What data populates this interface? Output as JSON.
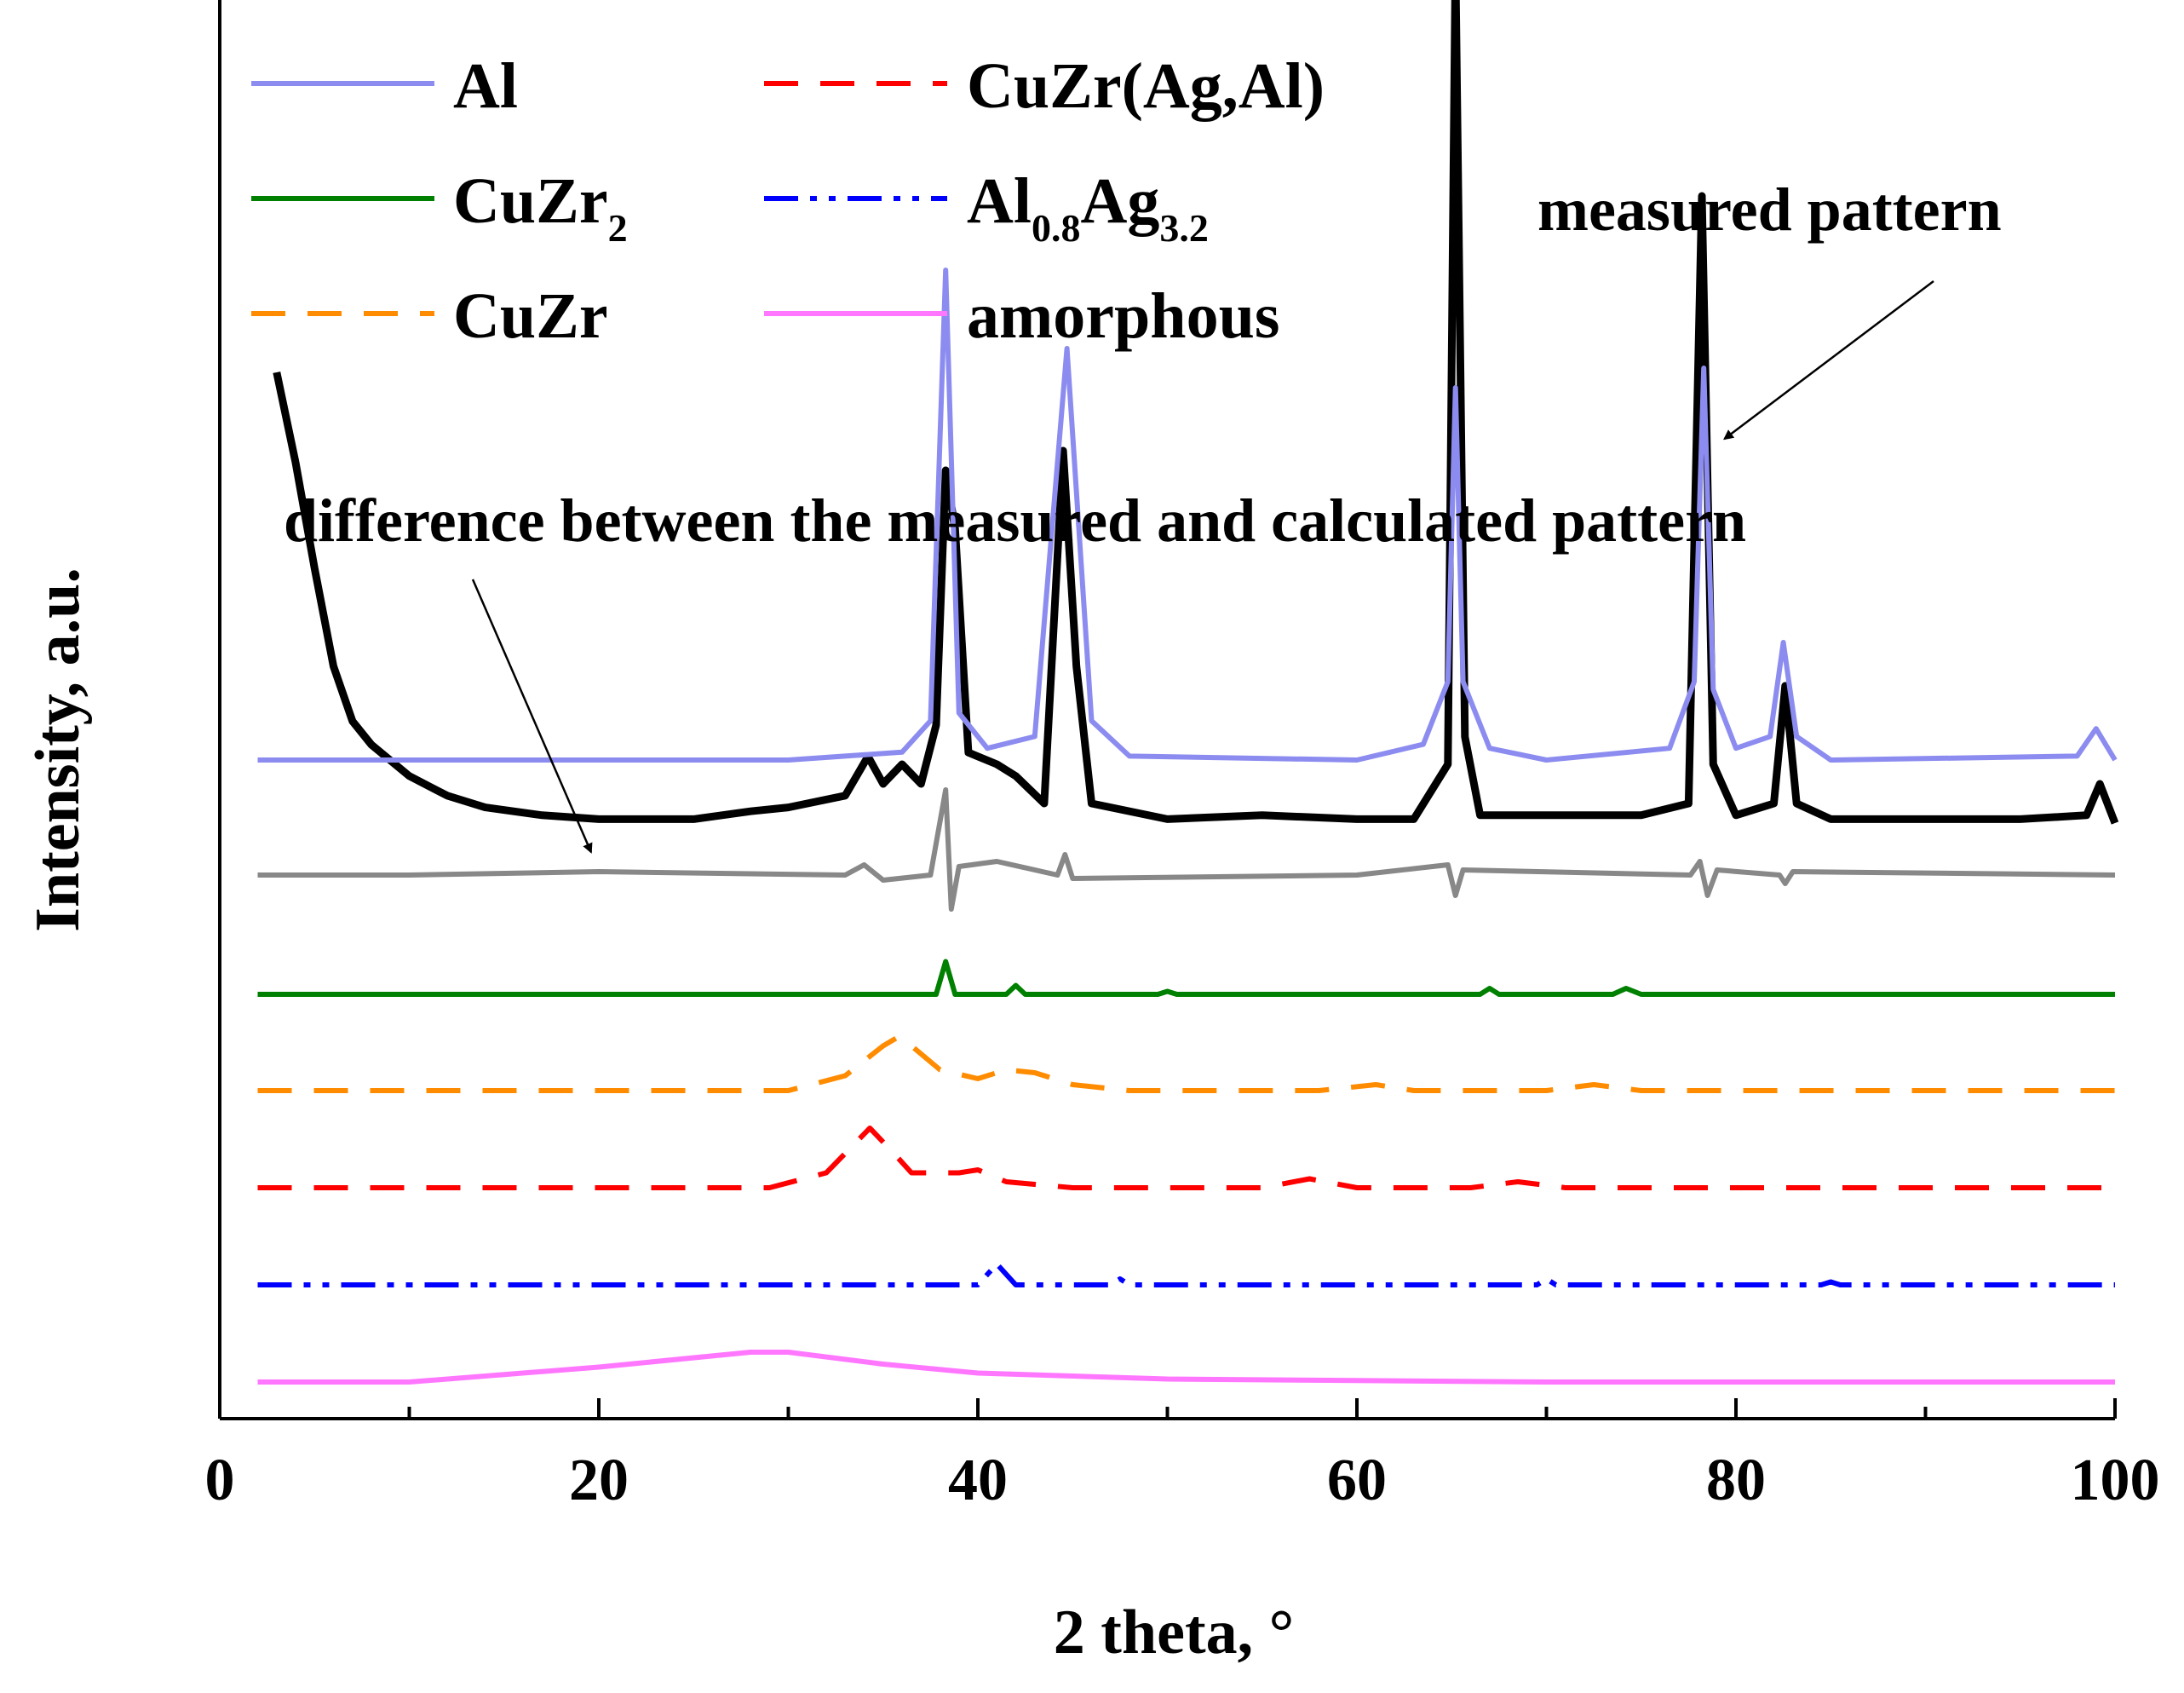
{
  "chart_data": {
    "type": "line",
    "title": "",
    "xlabel": "2 theta, °",
    "ylabel": "Intensity, a.u.",
    "xlim": [
      0,
      100
    ],
    "x_ticks": [
      0,
      20,
      40,
      60,
      80,
      100
    ],
    "x_tick_labels": [
      "0",
      "20",
      "40",
      "60",
      "80",
      "100"
    ],
    "y_ticks": [],
    "grid": false,
    "legend_position": "top-left",
    "legend": [
      {
        "key": "al",
        "parts": [
          {
            "text": "Al"
          }
        ],
        "color": "#8c8cf0",
        "dash": "solid"
      },
      {
        "key": "cuzr_agal",
        "parts": [
          {
            "text": "CuZr(Ag,Al)"
          }
        ],
        "color": "#ff0000",
        "dash": "dash"
      },
      {
        "key": "cuzr2",
        "parts": [
          {
            "text": "CuZr"
          },
          {
            "text": "2",
            "sub": true
          }
        ],
        "color": "#008000",
        "dash": "solid"
      },
      {
        "key": "al08ag32",
        "parts": [
          {
            "text": "Al"
          },
          {
            "text": "0.8",
            "sub": true
          },
          {
            "text": "Ag"
          },
          {
            "text": "3.2",
            "sub": true
          }
        ],
        "color": "#0000ff",
        "dash": "dashdotdot"
      },
      {
        "key": "cuzr",
        "parts": [
          {
            "text": "CuZr"
          }
        ],
        "color": "#ff8c00",
        "dash": "dash"
      },
      {
        "key": "amorphous",
        "parts": [
          {
            "text": "amorphous"
          }
        ],
        "color": "#ff77ff",
        "dash": "solid"
      }
    ],
    "annotations": [
      {
        "key": "measured",
        "text": "measured pattern",
        "points_to": {
          "x": 78.5,
          "series": "measured pattern"
        }
      },
      {
        "key": "difference",
        "text": "difference between the measured and calculated pattern",
        "points_to": {
          "x": 19.5,
          "series": "difference"
        }
      }
    ],
    "series": [
      {
        "name": "measured pattern",
        "color": "#000000",
        "dash": "solid",
        "points": [
          [
            3,
            1.55
          ],
          [
            4,
            1.32
          ],
          [
            5,
            1.05
          ],
          [
            6,
            0.8
          ],
          [
            7,
            0.66
          ],
          [
            8,
            0.6
          ],
          [
            10,
            0.52
          ],
          [
            12,
            0.47
          ],
          [
            14,
            0.44
          ],
          [
            17,
            0.42
          ],
          [
            20,
            0.41
          ],
          [
            25,
            0.41
          ],
          [
            28,
            0.43
          ],
          [
            30,
            0.44
          ],
          [
            33,
            0.47
          ],
          [
            34.2,
            0.57
          ],
          [
            35,
            0.5
          ],
          [
            36,
            0.55
          ],
          [
            37,
            0.5
          ],
          [
            37.8,
            0.65
          ],
          [
            38.3,
            1.3
          ],
          [
            38.8,
            1.15
          ],
          [
            39.5,
            0.58
          ],
          [
            41,
            0.55
          ],
          [
            42,
            0.52
          ],
          [
            43.5,
            0.45
          ],
          [
            44.5,
            1.35
          ],
          [
            45.2,
            0.8
          ],
          [
            46,
            0.45
          ],
          [
            50,
            0.41
          ],
          [
            55,
            0.42
          ],
          [
            60,
            0.41
          ],
          [
            63,
            0.41
          ],
          [
            64.8,
            0.55
          ],
          [
            65.2,
            2.6
          ],
          [
            65.7,
            0.62
          ],
          [
            66.5,
            0.42
          ],
          [
            70,
            0.42
          ],
          [
            75,
            0.42
          ],
          [
            77.5,
            0.45
          ],
          [
            78.2,
            2.0
          ],
          [
            78.8,
            0.55
          ],
          [
            80,
            0.42
          ],
          [
            82,
            0.45
          ],
          [
            82.6,
            0.75
          ],
          [
            83.2,
            0.45
          ],
          [
            85,
            0.41
          ],
          [
            90,
            0.41
          ],
          [
            95,
            0.41
          ],
          [
            98.5,
            0.42
          ],
          [
            99.2,
            0.5
          ],
          [
            100,
            0.4
          ]
        ]
      },
      {
        "name": "Al",
        "color": "#8c8cf0",
        "dash": "solid",
        "points": [
          [
            2,
            0.3
          ],
          [
            30,
            0.3
          ],
          [
            36,
            0.32
          ],
          [
            37.5,
            0.4
          ],
          [
            38.3,
            1.55
          ],
          [
            39,
            0.42
          ],
          [
            40.5,
            0.33
          ],
          [
            43,
            0.36
          ],
          [
            44.7,
            1.35
          ],
          [
            46,
            0.4
          ],
          [
            48,
            0.31
          ],
          [
            60,
            0.3
          ],
          [
            63.5,
            0.34
          ],
          [
            64.8,
            0.5
          ],
          [
            65.2,
            1.25
          ],
          [
            65.6,
            0.5
          ],
          [
            67,
            0.33
          ],
          [
            70,
            0.3
          ],
          [
            76.5,
            0.33
          ],
          [
            77.8,
            0.5
          ],
          [
            78.3,
            1.3
          ],
          [
            78.8,
            0.48
          ],
          [
            80,
            0.33
          ],
          [
            81.8,
            0.36
          ],
          [
            82.5,
            0.6
          ],
          [
            83.2,
            0.36
          ],
          [
            85,
            0.3
          ],
          [
            98,
            0.31
          ],
          [
            99,
            0.38
          ],
          [
            100,
            0.3
          ]
        ]
      },
      {
        "name": "difference",
        "color": "#888888",
        "dash": "solid",
        "points": [
          [
            2,
            0
          ],
          [
            10,
            0
          ],
          [
            20,
            0.02
          ],
          [
            33,
            0
          ],
          [
            34,
            0.06
          ],
          [
            35,
            -0.03
          ],
          [
            37.5,
            0
          ],
          [
            38.3,
            0.5
          ],
          [
            38.6,
            -0.2
          ],
          [
            39,
            0.05
          ],
          [
            41,
            0.08
          ],
          [
            44.2,
            0
          ],
          [
            44.6,
            0.12
          ],
          [
            45,
            -0.02
          ],
          [
            60,
            0
          ],
          [
            64.8,
            0.06
          ],
          [
            65.2,
            -0.12
          ],
          [
            65.6,
            0.03
          ],
          [
            77.6,
            0
          ],
          [
            78.1,
            0.08
          ],
          [
            78.5,
            -0.12
          ],
          [
            79,
            0.03
          ],
          [
            82.3,
            0
          ],
          [
            82.6,
            -0.05
          ],
          [
            83,
            0.02
          ],
          [
            100,
            0
          ]
        ]
      },
      {
        "name": "CuZr2",
        "color": "#008000",
        "dash": "solid",
        "points": [
          [
            2,
            0
          ],
          [
            37.8,
            0
          ],
          [
            38.3,
            0.11
          ],
          [
            38.8,
            0
          ],
          [
            41.5,
            0
          ],
          [
            42,
            0.03
          ],
          [
            42.5,
            0
          ],
          [
            49.5,
            0
          ],
          [
            50,
            0.01
          ],
          [
            50.5,
            0
          ],
          [
            66.5,
            0
          ],
          [
            67,
            0.02
          ],
          [
            67.5,
            0
          ],
          [
            73.5,
            0
          ],
          [
            74.2,
            0.02
          ],
          [
            75,
            0
          ],
          [
            100,
            0
          ]
        ]
      },
      {
        "name": "CuZr",
        "color": "#ff8c00",
        "dash": "dash",
        "points": [
          [
            2,
            0
          ],
          [
            30,
            0
          ],
          [
            33,
            0.05
          ],
          [
            35,
            0.15
          ],
          [
            35.8,
            0.18
          ],
          [
            36.5,
            0.15
          ],
          [
            38,
            0.07
          ],
          [
            40,
            0.04
          ],
          [
            41.5,
            0.07
          ],
          [
            43,
            0.06
          ],
          [
            45,
            0.02
          ],
          [
            48,
            0
          ],
          [
            58,
            0
          ],
          [
            61,
            0.02
          ],
          [
            63,
            0
          ],
          [
            70,
            0
          ],
          [
            72.5,
            0.02
          ],
          [
            75,
            0
          ],
          [
            100,
            0
          ]
        ]
      },
      {
        "name": "CuZr(Ag,Al)",
        "color": "#ff0000",
        "dash": "dash",
        "points": [
          [
            2,
            0
          ],
          [
            29,
            0
          ],
          [
            32,
            0.05
          ],
          [
            34.3,
            0.2
          ],
          [
            35.5,
            0.12
          ],
          [
            36.5,
            0.05
          ],
          [
            39,
            0.05
          ],
          [
            40,
            0.06
          ],
          [
            41.5,
            0.02
          ],
          [
            45,
            0
          ],
          [
            55,
            0
          ],
          [
            57.5,
            0.03
          ],
          [
            60,
            0
          ],
          [
            66,
            0
          ],
          [
            68.5,
            0.02
          ],
          [
            71,
            0
          ],
          [
            100,
            0
          ]
        ]
      },
      {
        "name": "Al0.8Ag3.2",
        "color": "#0000ff",
        "dash": "dashdotdot",
        "points": [
          [
            2,
            0
          ],
          [
            40,
            0
          ],
          [
            41,
            0.07
          ],
          [
            42,
            0
          ],
          [
            47,
            0
          ],
          [
            47.5,
            0.02
          ],
          [
            48,
            0
          ],
          [
            69.5,
            0
          ],
          [
            70,
            0.02
          ],
          [
            70.5,
            0
          ],
          [
            84.5,
            0
          ],
          [
            85,
            0.01
          ],
          [
            85.5,
            0
          ],
          [
            100,
            0
          ]
        ]
      },
      {
        "name": "amorphous",
        "color": "#ff77ff",
        "dash": "solid",
        "points": [
          [
            2,
            0
          ],
          [
            10,
            0
          ],
          [
            20,
            0.05
          ],
          [
            28,
            0.1
          ],
          [
            30,
            0.1
          ],
          [
            35,
            0.06
          ],
          [
            40,
            0.03
          ],
          [
            50,
            0.01
          ],
          [
            60,
            0.005
          ],
          [
            70,
            0
          ],
          [
            100,
            0
          ]
        ]
      }
    ]
  }
}
